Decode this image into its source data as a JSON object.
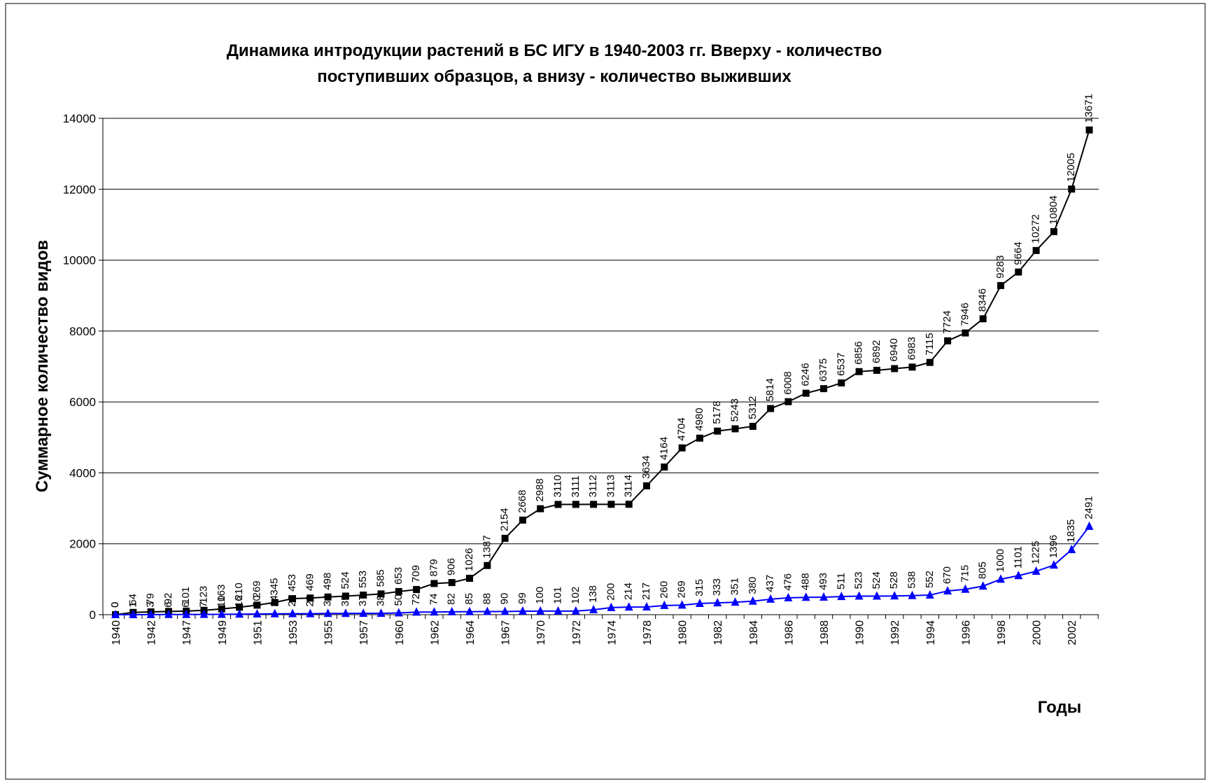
{
  "chart_data": {
    "type": "line",
    "title": [
      "Динамика интродукции растений в БС ИГУ в 1940-2003 гг. Вверху - количество",
      "поступивших образцов, а внизу - количество выживших"
    ],
    "y_label": "Суммарное количество видов",
    "x_label": "Годы",
    "categories": [
      "1940",
      null,
      "1942",
      null,
      "1947",
      null,
      "1949",
      null,
      "1951",
      null,
      "1953",
      null,
      "1955",
      null,
      "1957",
      null,
      "1960",
      null,
      "1962",
      null,
      "1964",
      null,
      "1967",
      null,
      "1970",
      null,
      "1972",
      null,
      "1974",
      null,
      "1978",
      null,
      "1980",
      null,
      "1982",
      null,
      "1984",
      null,
      "1986",
      null,
      "1988",
      null,
      "1990",
      null,
      "1992",
      null,
      "1994",
      null,
      "1996",
      null,
      "1998",
      null,
      "2000",
      null,
      "2002",
      null
    ],
    "series": [
      {
        "color": "#000000",
        "marker": "square",
        "values": [
          0,
          64,
          79,
          92,
          101,
          123,
          163,
          210,
          269,
          345,
          453,
          469,
          498,
          524,
          553,
          585,
          653,
          709,
          879,
          906,
          1026,
          1387,
          2154,
          2668,
          2988,
          3110,
          3111,
          3112,
          3113,
          3114,
          3634,
          4164,
          4704,
          4980,
          5178,
          5243,
          5312,
          5814,
          6008,
          6246,
          6375,
          6537,
          6856,
          6892,
          6940,
          6983,
          7115,
          7724,
          7946,
          8346,
          9283,
          9664,
          10272,
          10804,
          12005,
          13671
        ]
      },
      {
        "color": "#0000ff",
        "marker": "triangle",
        "values": [
          0,
          1,
          3,
          6,
          6,
          7,
          10,
          16,
          20,
          24,
          27,
          28,
          34,
          35,
          37,
          38,
          50,
          72,
          74,
          82,
          85,
          88,
          90,
          99,
          100,
          101,
          102,
          138,
          200,
          214,
          217,
          260,
          269,
          315,
          333,
          351,
          380,
          437,
          476,
          488,
          493,
          511,
          523,
          524,
          528,
          538,
          552,
          670,
          715,
          805,
          1000,
          1101,
          1225,
          1396,
          1835,
          2491
        ]
      }
    ],
    "ylim": [
      0,
      14000
    ],
    "yticks": [
      0,
      2000,
      4000,
      6000,
      8000,
      10000,
      12000,
      14000
    ],
    "grid": true
  }
}
